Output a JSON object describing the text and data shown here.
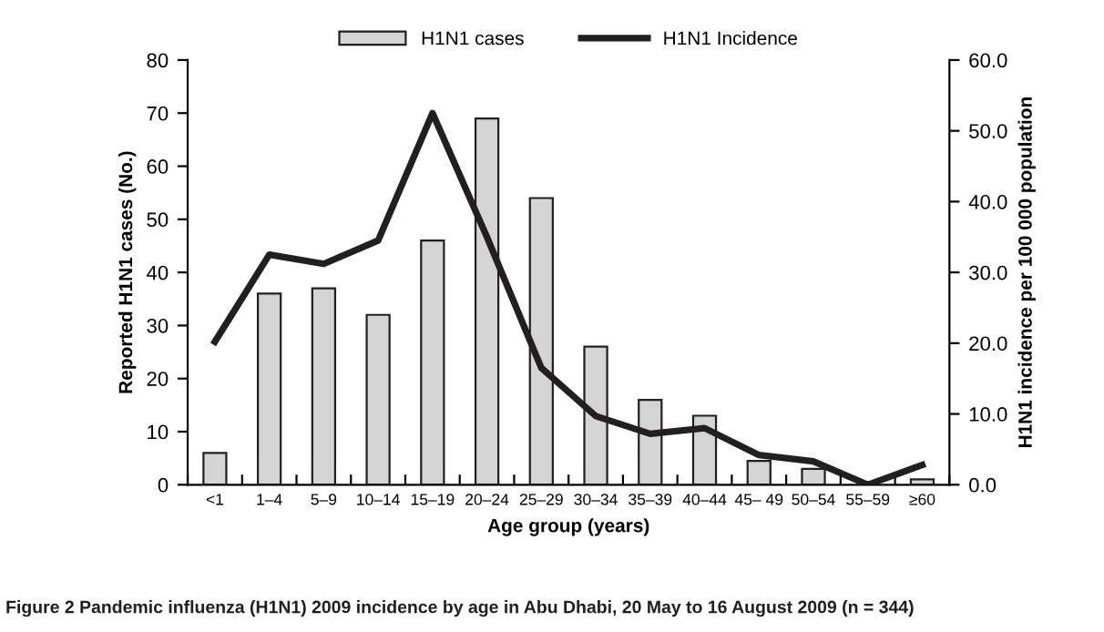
{
  "chart_data": {
    "type": "bar",
    "title": "Figure 2 Pandemic influenza (H1N1) 2009 incidence by age in Abu Dhabi, 20 May to 16 August 2009 (n = 344)",
    "xlabel": "Age group (years)",
    "ylabel": "Reported H1N1 cases (No.)",
    "y2label": "H1N1 incidence per 100 000 population",
    "categories": [
      "<1",
      "1–4",
      "5–9",
      "10–14",
      "15–19",
      "20–24",
      "25–29",
      "30–34",
      "35–39",
      "40–44",
      "45– 49",
      "50–54",
      "55–59",
      "≥60"
    ],
    "series": [
      {
        "name": "H1N1 cases",
        "color": "#d4d4d4",
        "values": [
          6,
          36,
          37,
          32,
          46,
          69,
          54,
          26,
          16,
          13,
          4.5,
          3,
          null,
          1
        ]
      },
      {
        "name": "H1N1 Incidence",
        "type": "line",
        "axis": "y2",
        "color": "#231f20",
        "values": [
          20.2,
          32.5,
          31.2,
          34.5,
          52.5,
          35,
          16.5,
          9.7,
          7.2,
          8,
          4.2,
          3.3,
          0,
          2.8
        ]
      }
    ],
    "ylim": [
      0,
      80
    ],
    "yticks": [
      0,
      10,
      20,
      30,
      40,
      50,
      60,
      70,
      80
    ],
    "y2lim": [
      0,
      60
    ],
    "y2ticks": [
      {
        "value": 0,
        "label": "0.0"
      },
      {
        "value": 10,
        "label": "10.0"
      },
      {
        "value": 20,
        "label": "20.0"
      },
      {
        "value": 30,
        "label": "30.0"
      },
      {
        "value": 40,
        "label": "40.0"
      },
      {
        "value": 50,
        "label": "50.0"
      },
      {
        "value": 60,
        "label": "60.0"
      }
    ],
    "legend": "top",
    "grid": false,
    "marker": "none",
    "line_style": "solid"
  }
}
